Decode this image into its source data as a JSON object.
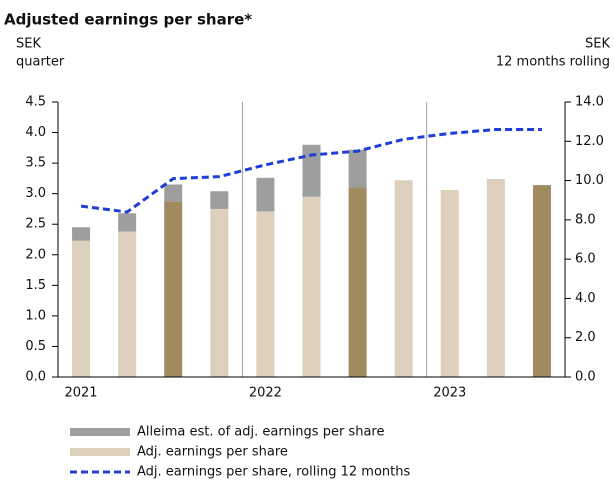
{
  "chart_data": {
    "type": "bar",
    "title": "Adjusted earnings per share*",
    "y_label": [
      "SEK",
      "quarter"
    ],
    "y2_label": [
      "SEK",
      "12 months rolling"
    ],
    "categories": [
      "2021",
      null,
      null,
      null,
      "2022",
      null,
      null,
      null,
      "2023",
      null,
      null
    ],
    "series": [
      {
        "name": "Adj. earnings per share",
        "color": "#dcd0bd",
        "colors": [
          "#dcd0bd",
          "#dcd0bd",
          "#a08a60",
          "#dcd0bd",
          "#dcd0bd",
          "#dcd0bd",
          "#a08a60",
          "#dcd0bd",
          "#dcd0bd",
          "#dcd0bd",
          "#a08a60"
        ],
        "values": [
          2.23,
          2.38,
          2.87,
          2.75,
          2.71,
          2.95,
          3.1,
          3.22,
          3.06,
          3.24,
          3.14
        ]
      },
      {
        "name": "Alleima est. of adj. earnings per share",
        "color": "#9e9e9e",
        "values": [
          0.22,
          0.3,
          0.28,
          0.29,
          0.55,
          0.85,
          0.62,
          null,
          null,
          null,
          null
        ]
      },
      {
        "name": "Adj. earnings per share, rolling 12 months",
        "type": "line",
        "axis": "y2",
        "color": "#1f3fd6",
        "values": [
          8.7,
          8.4,
          10.1,
          10.2,
          10.8,
          11.3,
          11.5,
          12.1,
          12.4,
          12.6,
          12.6
        ]
      }
    ],
    "legend_order": [
      1,
      0,
      2
    ],
    "ylim": [
      0,
      4.5
    ],
    "yticks": [
      {
        "value": 0,
        "label": "0.0"
      },
      0.5,
      {
        "value": 1,
        "label": "1.0"
      },
      1.5,
      {
        "value": 2,
        "label": "2.0"
      },
      2.5,
      {
        "value": 3,
        "label": "3.0"
      },
      3.5,
      {
        "value": 4,
        "label": "4.0"
      },
      4.5
    ],
    "y2lim": [
      0,
      14
    ],
    "y2ticks": [
      {
        "value": 0,
        "label": "0.0"
      },
      {
        "value": 2,
        "label": "2.0"
      },
      {
        "value": 4,
        "label": "4.0"
      },
      {
        "value": 6,
        "label": "6.0"
      },
      {
        "value": 8,
        "label": "8.0"
      },
      {
        "value": 10,
        "label": "10.0"
      },
      {
        "value": 12,
        "label": "12.0"
      },
      {
        "value": 14,
        "label": "14.0"
      }
    ]
  }
}
